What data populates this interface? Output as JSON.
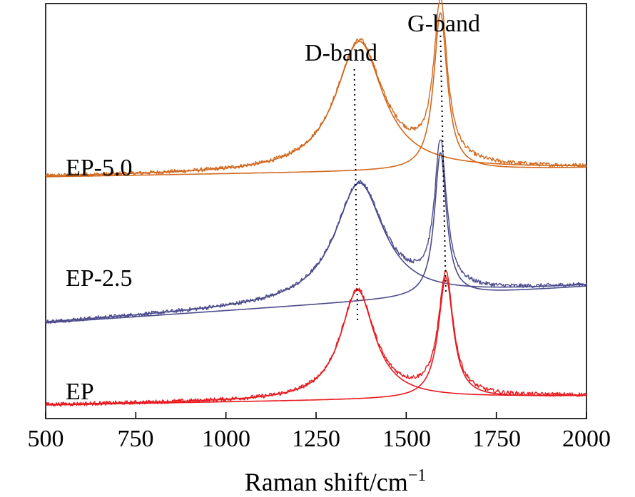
{
  "chart_data": {
    "type": "line",
    "title": "",
    "xlabel": "Raman shift/cm",
    "xlabel_sup": "−1",
    "ylabel": "",
    "xlim": [
      500,
      2000
    ],
    "x_ticks": [
      500,
      750,
      1000,
      1250,
      1500,
      1750,
      2000
    ],
    "x_tick_labels": [
      "500",
      "750",
      "1000",
      "1250",
      "1500",
      "1750",
      "2000"
    ],
    "grid": false,
    "y_axis_ticks": false,
    "band_annotations": [
      {
        "label": "D-band",
        "x": 1365
      },
      {
        "label": "G-band",
        "x": 1600
      }
    ],
    "series": [
      {
        "name": "EP-5.0",
        "color": "#d2691e",
        "baseline": [
          0.5,
          0.52
        ],
        "peaks": [
          {
            "band": "D",
            "center": 1370,
            "width": 160,
            "height": 0.285
          },
          {
            "band": "G",
            "center": 1595,
            "width": 45,
            "height": 0.345
          }
        ]
      },
      {
        "name": "EP-2.5",
        "color": "#4b4b8c",
        "baseline": [
          0.18,
          0.26
        ],
        "peaks": [
          {
            "band": "D",
            "center": 1370,
            "width": 165,
            "height": 0.26
          },
          {
            "band": "G",
            "center": 1595,
            "width": 40,
            "height": 0.315
          }
        ]
      },
      {
        "name": "EP",
        "color": "#e8191e",
        "baseline": [
          0.0,
          0.02
        ],
        "peaks": [
          {
            "band": "D",
            "center": 1365,
            "width": 115,
            "height": 0.24
          },
          {
            "band": "G",
            "center": 1610,
            "width": 50,
            "height": 0.265
          }
        ]
      }
    ]
  }
}
